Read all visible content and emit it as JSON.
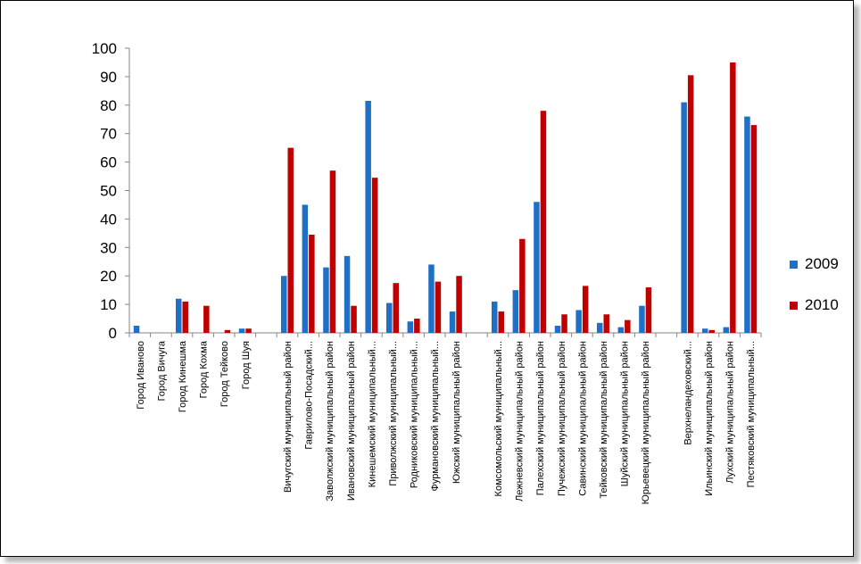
{
  "colors": {
    "s2009": "#1F6FC5",
    "s2010": "#C00000",
    "axis": "#868686",
    "text": "#000000"
  },
  "chart_data": {
    "type": "bar",
    "ylim": [
      0,
      100
    ],
    "yticks": [
      0,
      10,
      20,
      30,
      40,
      50,
      60,
      70,
      80,
      90,
      100
    ],
    "grid": false,
    "legend_position": "right",
    "categories": [
      "Город Иваново",
      "Город Вичуга",
      "Город Кинешма",
      "Город Кохма",
      "Город Тейково",
      "Город Шуя",
      "",
      "Вичугский муниципальный район",
      "Гаврилово-Посадский...",
      "Заволжский муниципальный район",
      "Ивановский муниципальный район",
      "Кинешемский муниципальный...",
      "Приволжский муниципальный...",
      "Родниковский муниципальный...",
      "Фурмановский муниципальный...",
      "Южский муниципальный район",
      "",
      "Комсомольский муниципальный...",
      "Лежневский муниципальный район",
      "Палехский муниципальный район",
      "Пучежский муниципальный район",
      "Савинский муниципальный район",
      "Тейковский муниципальный район",
      "Шуйский муниципальный район",
      "Юрьевецкий муниципальный район",
      "",
      "Верхнеландеховский...",
      "Ильинский муниципальный район",
      "Лухский муниципальный район",
      "Пестяковский муниципальный..."
    ],
    "series": [
      {
        "name": "2009",
        "values": [
          2.5,
          0,
          12,
          0,
          0,
          1.5,
          0,
          20,
          45,
          23,
          27,
          81.5,
          10.5,
          4,
          24,
          7.5,
          0,
          11,
          15,
          46,
          2.5,
          8,
          3.5,
          2,
          9.5,
          0,
          81,
          1.5,
          2,
          76
        ]
      },
      {
        "name": "2010",
        "values": [
          0,
          0,
          11,
          9.5,
          1,
          1.5,
          0,
          65,
          34.5,
          57,
          9.5,
          54.5,
          17.5,
          5,
          18,
          20,
          0,
          7.5,
          33,
          78,
          6.5,
          16.5,
          6.5,
          4.5,
          16,
          0,
          90.5,
          1,
          95,
          73
        ]
      }
    ]
  }
}
